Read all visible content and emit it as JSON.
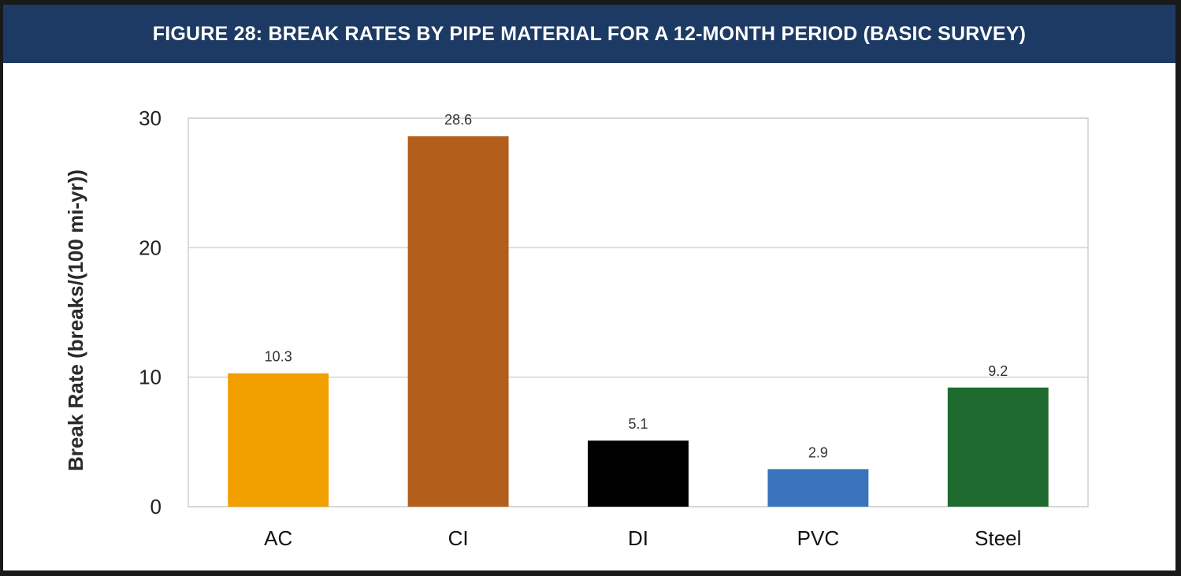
{
  "header": {
    "title": "FIGURE 28: BREAK RATES BY PIPE MATERIAL FOR A 12-MONTH PERIOD (BASIC SURVEY)",
    "background_color": "#1c3a63"
  },
  "chart_data": {
    "type": "bar",
    "title": "FIGURE 28: BREAK RATES BY PIPE MATERIAL FOR A 12-MONTH PERIOD (BASIC SURVEY)",
    "xlabel": "",
    "ylabel": "Break Rate (breaks/(100 mi-yr))",
    "categories": [
      "AC",
      "CI",
      "DI",
      "PVC",
      "Steel"
    ],
    "values": [
      10.3,
      28.6,
      5.1,
      2.9,
      9.2
    ],
    "value_labels": [
      "10.3",
      "28.6",
      "5.1",
      "2.9",
      "9.2"
    ],
    "colors": [
      "#f2a000",
      "#b35e1b",
      "#000000",
      "#3a74bd",
      "#1f6b2f"
    ],
    "ylim": [
      0,
      30
    ],
    "yticks": [
      0,
      10,
      20,
      30
    ],
    "ytick_labels": [
      "0",
      "10",
      "20",
      "30"
    ],
    "grid": true,
    "legend": "none"
  }
}
